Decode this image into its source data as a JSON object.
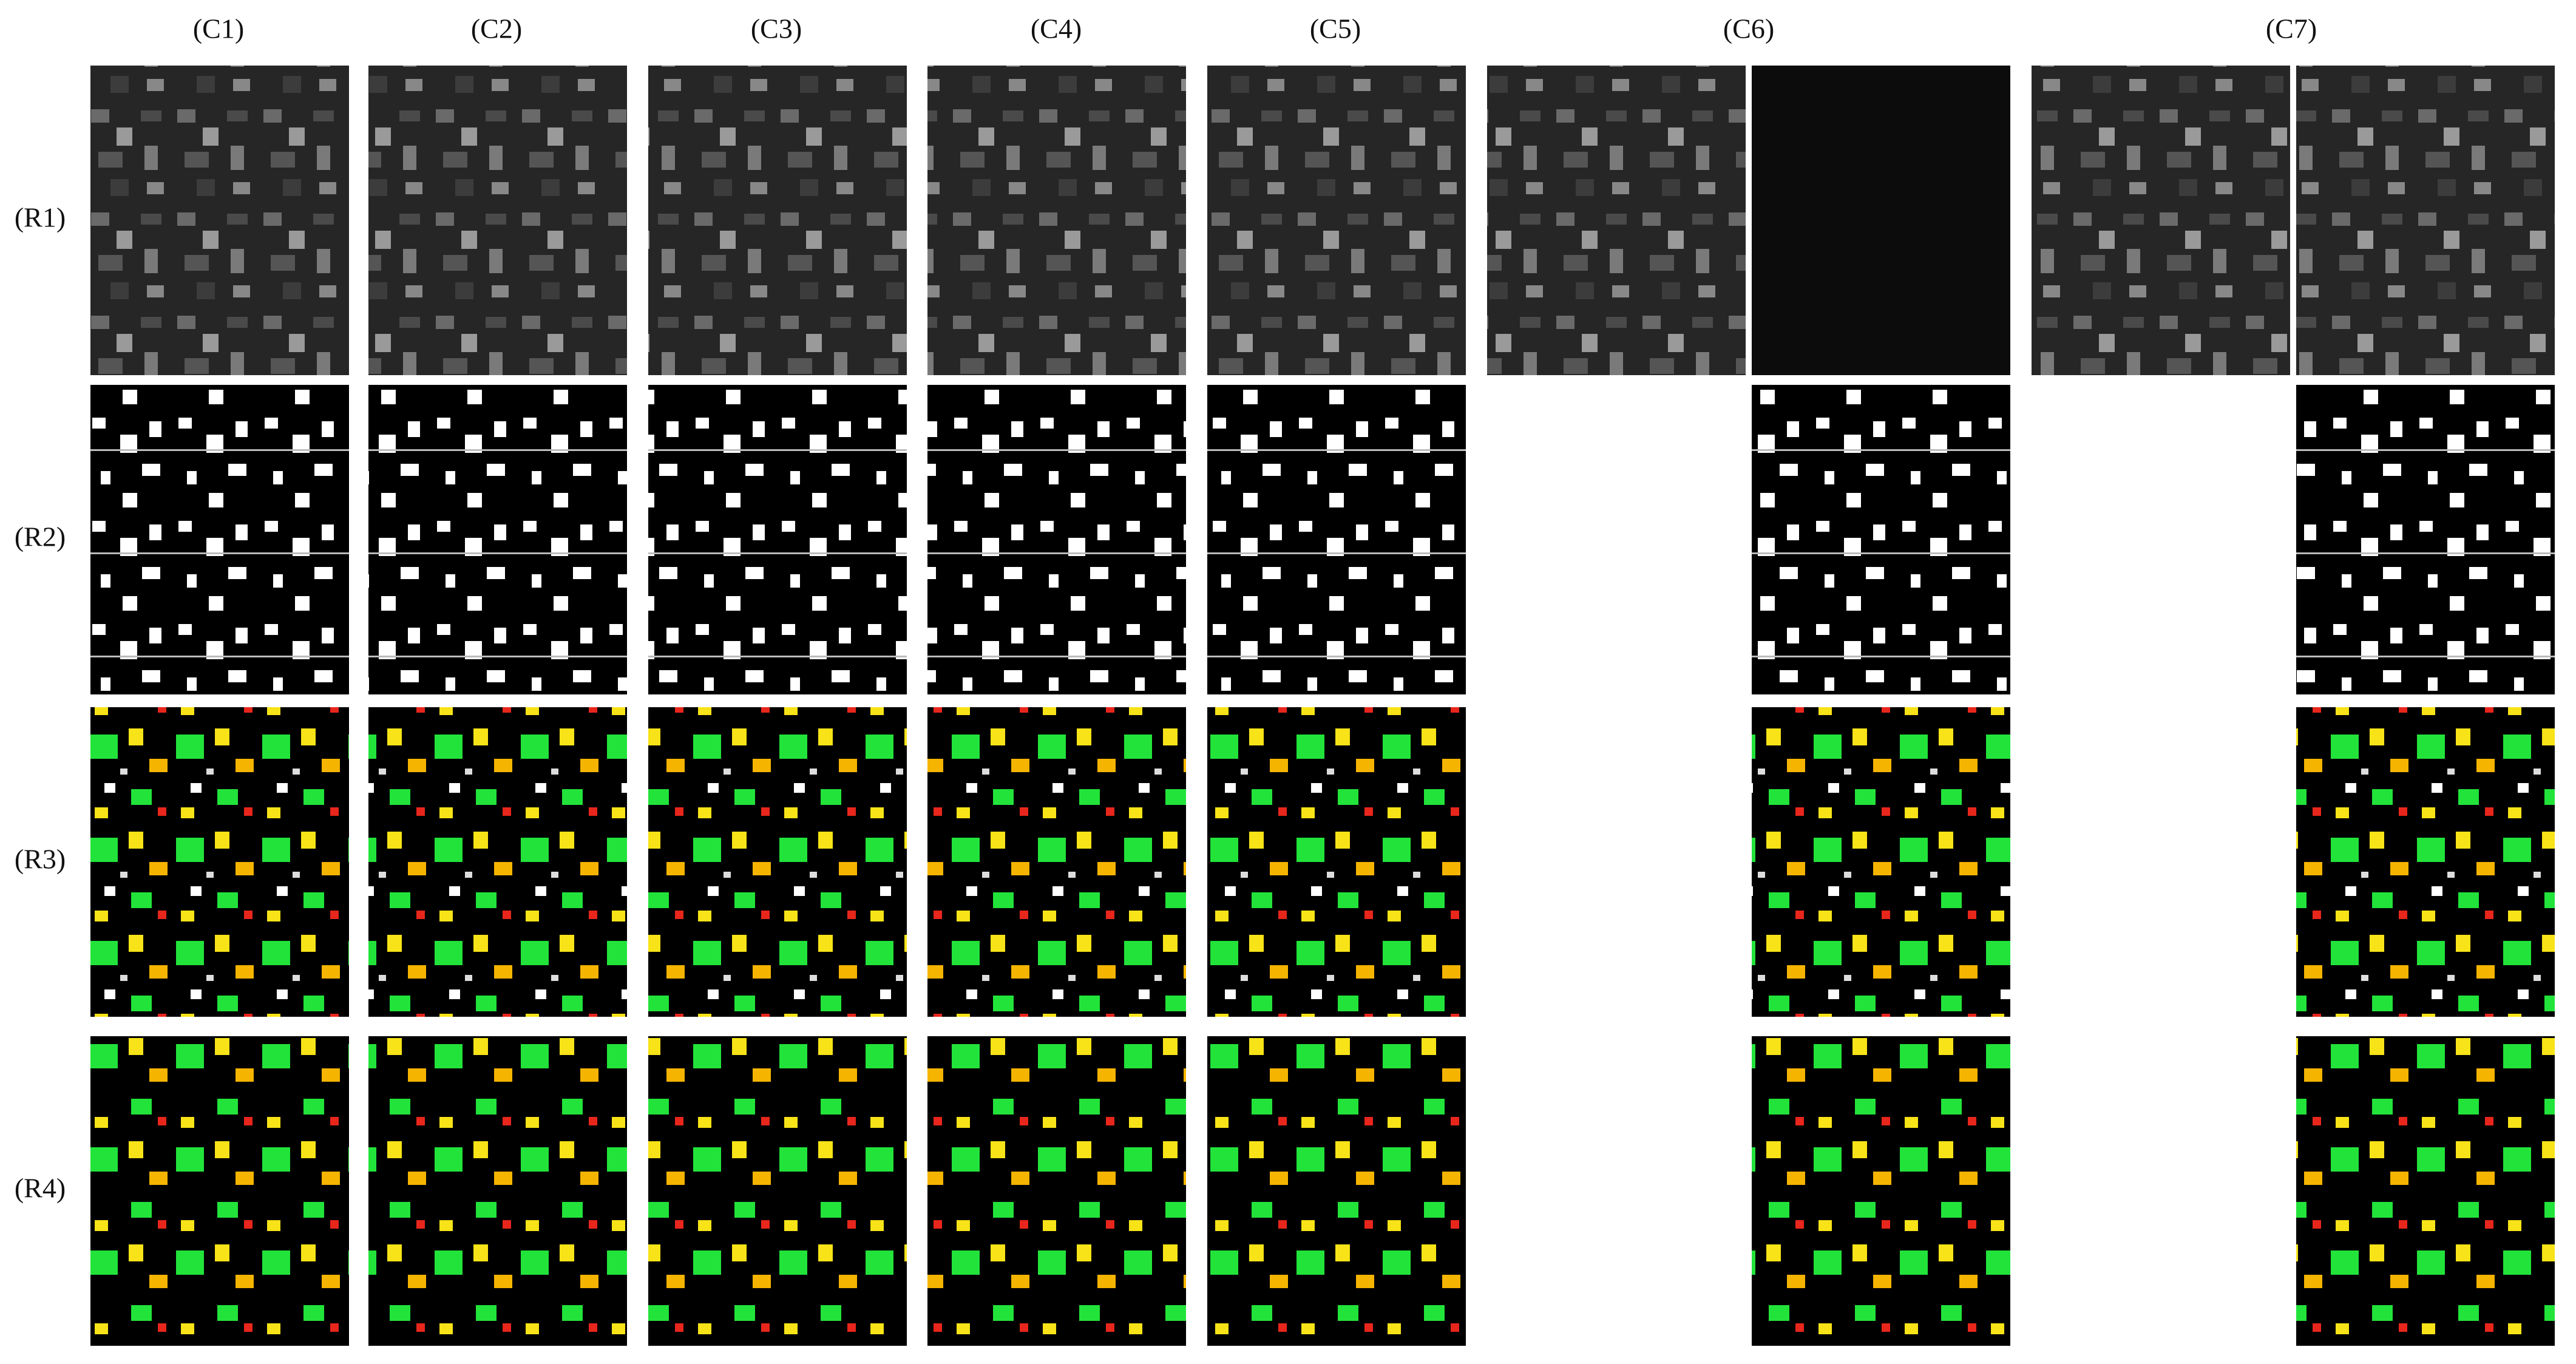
{
  "column_labels": [
    "(C1)",
    "(C2)",
    "(C3)",
    "(C4)",
    "(C5)",
    "(C6)",
    "(C7)"
  ],
  "row_labels": [
    "(R1)",
    "(R2)",
    "(R3)",
    "(R4)"
  ]
}
